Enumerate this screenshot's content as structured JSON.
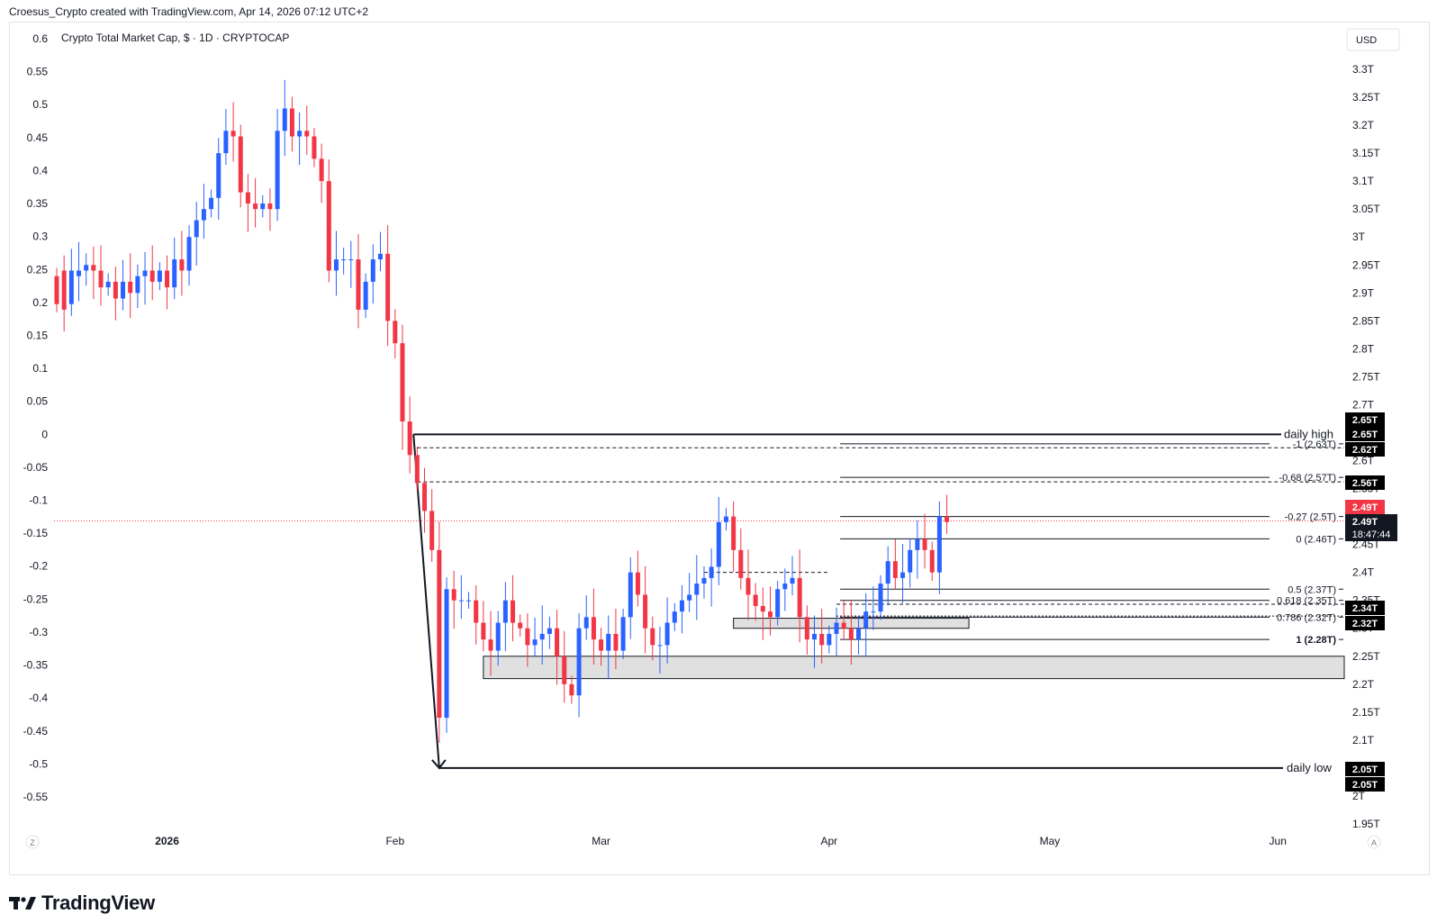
{
  "header": {
    "attribution": "Croesus_Crypto created with TradingView.com, Apr 14, 2026 07:12 UTC+2"
  },
  "chart_data": {
    "type": "candlestick",
    "title": "Crypto Total Market Cap, $ · 1D · CRYPTOCAP",
    "currency_button": "USD",
    "last_price": "2.49T",
    "countdown": "18:47:44",
    "price_ticks": [
      "3.3T",
      "3.25T",
      "3.2T",
      "3.15T",
      "3.1T",
      "3.05T",
      "3T",
      "2.95T",
      "2.9T",
      "2.85T",
      "2.8T",
      "2.75T",
      "2.7T",
      "2.6T",
      "2.55T",
      "2.45T",
      "2.4T",
      "2.35T",
      "2.3T",
      "2.25T",
      "2.2T",
      "2.15T",
      "2.1T",
      "2T",
      "1.95T"
    ],
    "price_tick_values": [
      3.3,
      3.25,
      3.2,
      3.15,
      3.1,
      3.05,
      3.0,
      2.95,
      2.9,
      2.85,
      2.8,
      2.75,
      2.7,
      2.6,
      2.55,
      2.45,
      2.4,
      2.35,
      2.3,
      2.25,
      2.2,
      2.15,
      2.1,
      2.0,
      1.95
    ],
    "left_ticks": [
      "0.6",
      "0.55",
      "0.5",
      "0.45",
      "0.4",
      "0.35",
      "0.3",
      "0.25",
      "0.2",
      "0.15",
      "0.1",
      "0.05",
      "0",
      "-0.05",
      "-0.1",
      "-0.15",
      "-0.2",
      "-0.25",
      "-0.3",
      "-0.35",
      "-0.4",
      "-0.45",
      "-0.5",
      "-0.55"
    ],
    "left_tick_values": [
      0.6,
      0.55,
      0.5,
      0.45,
      0.4,
      0.35,
      0.3,
      0.25,
      0.2,
      0.15,
      0.1,
      0.05,
      0,
      -0.05,
      -0.1,
      -0.15,
      -0.2,
      -0.25,
      -0.3,
      -0.35,
      -0.4,
      -0.45,
      -0.5,
      -0.55
    ],
    "time_labels": [
      {
        "label": "2026",
        "day": 15,
        "bold": true
      },
      {
        "label": "Feb",
        "day": 46,
        "bold": false
      },
      {
        "label": "Mar",
        "day": 74,
        "bold": false
      },
      {
        "label": "Apr",
        "day": 105,
        "bold": false
      },
      {
        "label": "May",
        "day": 135,
        "bold": false
      },
      {
        "label": "Jun",
        "day": 166,
        "bold": false
      }
    ],
    "axis_corner_left": "Z",
    "axis_corner_right": "A",
    "colors": {
      "up": "#2962ff",
      "down": "#f23645",
      "lines": "#131722",
      "badge": "#000000",
      "last": "#f23645",
      "zone": "#e0e0e0"
    },
    "candles_open_close": [
      2.93,
      2.88,
      2.94,
      2.87,
      2.88,
      2.94,
      2.93,
      2.94,
      2.94,
      2.95,
      2.95,
      2.94,
      2.94,
      2.91,
      2.91,
      2.92,
      2.92,
      2.89,
      2.89,
      2.92,
      2.92,
      2.9,
      2.9,
      2.93,
      2.93,
      2.94,
      2.94,
      2.92,
      2.92,
      2.94,
      2.94,
      2.91,
      2.91,
      2.96,
      2.96,
      2.94,
      2.94,
      3.0,
      3.0,
      3.03,
      3.03,
      3.05,
      3.05,
      3.07,
      3.07,
      3.15,
      3.15,
      3.19,
      3.19,
      3.18,
      3.18,
      3.08,
      3.08,
      3.06,
      3.06,
      3.05,
      3.05,
      3.06,
      3.06,
      3.05,
      3.05,
      3.19,
      3.19,
      3.23,
      3.23,
      3.18,
      3.18,
      3.19,
      3.19,
      3.18,
      3.18,
      3.14,
      3.14,
      3.1,
      3.1,
      2.94,
      2.94,
      2.96,
      2.96,
      2.96,
      2.96,
      2.96,
      2.96,
      2.87,
      2.87,
      2.92,
      2.92,
      2.96,
      2.96,
      2.97,
      2.97,
      2.85,
      2.85,
      2.81,
      2.81,
      2.67,
      2.67,
      2.61,
      2.61,
      2.56,
      2.56,
      2.51,
      2.51,
      2.44,
      2.44,
      2.14,
      2.14,
      2.37,
      2.37,
      2.35,
      2.35,
      2.35,
      2.35,
      2.35,
      2.35,
      2.31,
      2.31,
      2.28,
      2.28,
      2.26,
      2.26,
      2.31,
      2.31,
      2.35,
      2.35,
      2.31,
      2.31,
      2.3,
      2.3,
      2.27,
      2.27,
      2.28,
      2.28,
      2.29,
      2.29,
      2.3,
      2.3,
      2.25,
      2.25,
      2.2,
      2.2,
      2.18,
      2.18,
      2.3,
      2.3,
      2.32,
      2.32,
      2.28,
      2.28,
      2.26,
      2.26,
      2.29,
      2.29,
      2.26,
      2.26,
      2.32,
      2.32,
      2.4,
      2.4,
      2.36,
      2.36,
      2.3,
      2.3,
      2.27,
      2.27,
      2.27,
      2.27,
      2.31,
      2.31,
      2.33,
      2.33,
      2.35,
      2.35,
      2.36,
      2.36,
      2.38,
      2.38,
      2.39,
      2.39,
      2.41,
      2.41,
      2.49,
      2.49,
      2.5,
      2.5,
      2.44,
      2.44,
      2.39,
      2.39,
      2.36,
      2.36,
      2.34,
      2.34,
      2.33,
      2.33,
      2.32,
      2.32,
      2.37,
      2.37,
      2.38,
      2.38,
      2.39,
      2.39,
      2.32,
      2.32,
      2.28,
      2.28,
      2.29,
      2.29,
      2.27,
      2.27,
      2.29,
      2.29,
      2.31,
      2.31,
      2.3,
      2.3,
      2.28,
      2.28,
      2.3,
      2.3,
      2.33,
      2.33,
      2.33,
      2.33,
      2.38,
      2.38,
      2.42,
      2.42,
      2.39,
      2.39,
      2.4,
      2.4,
      2.44,
      2.44,
      2.46,
      2.46,
      2.44,
      2.44,
      2.4,
      2.4,
      2.5,
      2.5,
      2.49
    ],
    "annotations": {
      "daily_high_label": "daily high",
      "daily_low_label": "daily low",
      "fib": [
        {
          "label": "-1 (2.63T)",
          "value": 2.63
        },
        {
          "label": "-0.68 (2.57T)",
          "value": 2.57
        },
        {
          "label": "-0.27 (2.5T)",
          "value": 2.5
        },
        {
          "label": "0 (2.46T)",
          "value": 2.46
        },
        {
          "label": "0.5 (2.37T)",
          "value": 2.37
        },
        {
          "label": "0.618 (2.35T)",
          "value": 2.35
        },
        {
          "label": "0.786 (2.32T)",
          "value": 2.32
        },
        {
          "label": "1 (2.28T)",
          "value": 2.28
        }
      ],
      "badges": [
        {
          "label": "2.65T",
          "value": 2.65
        },
        {
          "label": "2.65T",
          "value": 2.65
        },
        {
          "label": "2.62T",
          "value": 2.62
        },
        {
          "label": "2.56T",
          "value": 2.56
        },
        {
          "label": "2.34T",
          "value": 2.34
        },
        {
          "label": "2.32T",
          "value": 2.32
        },
        {
          "label": "2.05T",
          "value": 2.05
        },
        {
          "label": "2.05T",
          "value": 2.05
        }
      ]
    }
  }
}
